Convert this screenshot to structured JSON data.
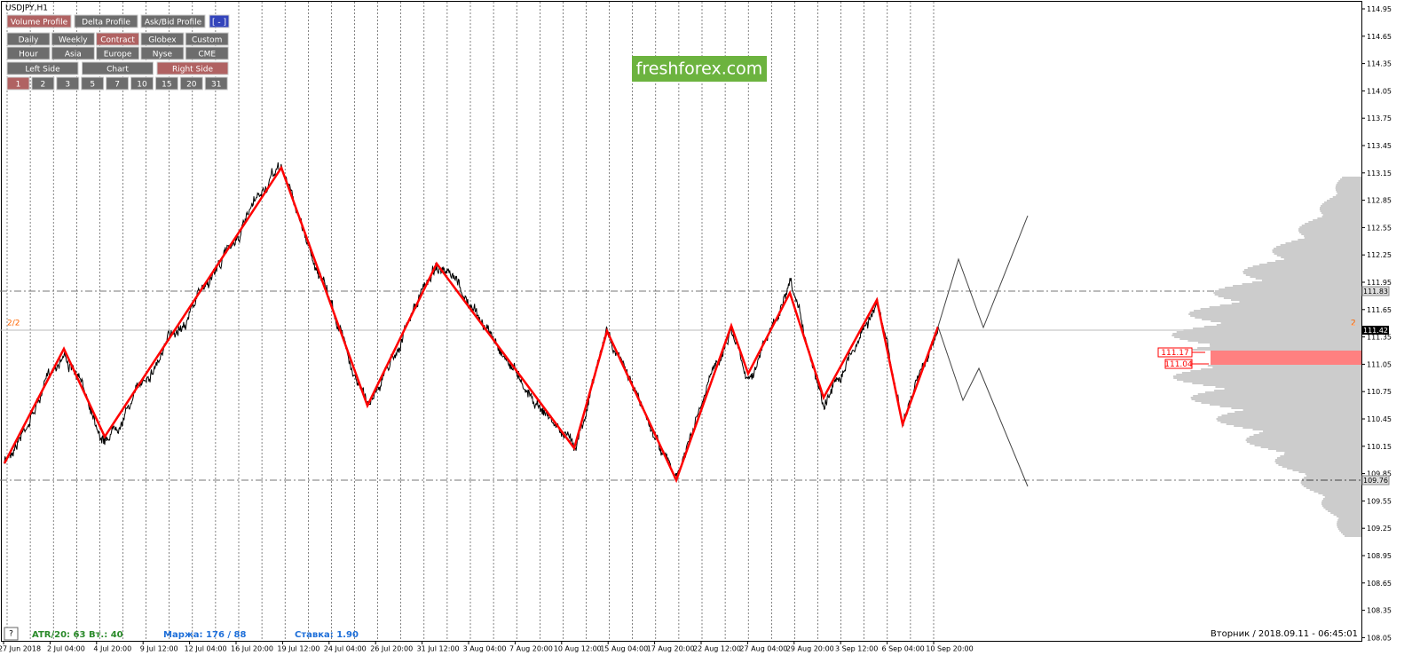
{
  "window_title": "USDJPY,H1",
  "buttons": {
    "profile": [
      "Volume Profile",
      "Delta Profile",
      "Ask/Bid Profile",
      "[ - ]"
    ],
    "session": [
      [
        "Daily",
        "Weekly",
        "Contract",
        "Globex",
        "Custom"
      ],
      [
        "Hour",
        "Asia",
        "Europe",
        "Nyse",
        "CME"
      ]
    ],
    "side": [
      "Left Side",
      "Chart",
      "Right Side"
    ],
    "days": [
      "1",
      "2",
      "3",
      "5",
      "7",
      "10",
      "15",
      "20",
      "31"
    ]
  },
  "logo": "freshforex.com",
  "price_axis": [
    "114.95",
    "114.65",
    "114.35",
    "114.05",
    "113.75",
    "113.45",
    "113.15",
    "112.85",
    "112.55",
    "112.25",
    "111.95",
    "111.65",
    "111.35",
    "111.05",
    "110.75",
    "110.45",
    "110.15",
    "109.85",
    "109.55",
    "109.25",
    "108.95",
    "108.65",
    "108.35",
    "108.05"
  ],
  "time_axis": [
    "27 Jun 2018",
    "2 Jul 04:00",
    "4 Jul 20:00",
    "9 Jul 12:00",
    "12 Jul 04:00",
    "16 Jul 20:00",
    "19 Jul 12:00",
    "24 Jul 04:00",
    "26 Jul 20:00",
    "31 Jul 12:00",
    "3 Aug 04:00",
    "7 Aug 20:00",
    "10 Aug 12:00",
    "15 Aug 04:00",
    "17 Aug 20:00",
    "22 Aug 12:00",
    "27 Aug 04:00",
    "29 Aug 20:00",
    "3 Sep 12:00",
    "6 Sep 04:00",
    "10 Sep 20:00"
  ],
  "price_tags": [
    "111.83",
    "111.42",
    "109.76"
  ],
  "level_tags": [
    "111.17",
    "111.04"
  ],
  "markers": [
    "2/2",
    "2"
  ],
  "status": {
    "help": "?",
    "atr": "ATR/20: 63",
    "vt": "Вт.: 40",
    "margin": "Маржа: 176 / 88",
    "rate": "Ставка: 1.90",
    "datetime": "Вторник / 2018.09.11 - 06:45:01"
  }
}
